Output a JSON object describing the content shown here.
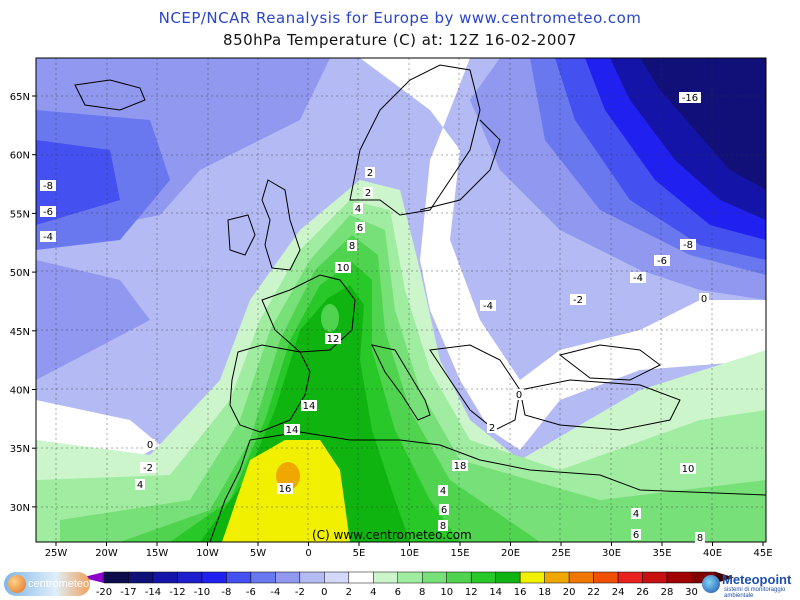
{
  "header": {
    "title": "NCEP/NCAR Reanalysis for Europe by www.centrometeo.com",
    "subtitle": "850hPa Temperature (C) at: 12Z 16-02-2007"
  },
  "watermark": "(C) www.centrometeo.com",
  "axes": {
    "x_ticks": [
      "25W",
      "20W",
      "15W",
      "10W",
      "5W",
      "0",
      "5E",
      "10E",
      "15E",
      "20E",
      "25E",
      "30E",
      "35E",
      "40E",
      "45E"
    ],
    "y_ticks": [
      "65N",
      "60N",
      "55N",
      "50N",
      "45N",
      "40N",
      "35N",
      "30N"
    ]
  },
  "contour_labels": [
    "-16",
    "-8",
    "-6",
    "-4",
    "-8",
    "-6",
    "-4",
    "-4",
    "-2",
    "0",
    "0",
    "-2",
    "4",
    "0",
    "2",
    "2",
    "2",
    "4",
    "6",
    "8",
    "10",
    "12",
    "14",
    "14",
    "16",
    "18",
    "4",
    "6",
    "8",
    "10",
    "4",
    "6",
    "8"
  ],
  "colorbar": {
    "labels": [
      "-20",
      "-17",
      "-14",
      "-12",
      "-10",
      "-8",
      "-6",
      "-4",
      "-2",
      "0",
      "2",
      "4",
      "6",
      "8",
      "10",
      "12",
      "14",
      "16",
      "18",
      "20",
      "22",
      "24",
      "26",
      "28",
      "30"
    ],
    "colors": [
      "#0c0c4c",
      "#101078",
      "#1414a8",
      "#1e1ecc",
      "#2020f0",
      "#4450f0",
      "#6a78f0",
      "#9098f0",
      "#b4baf4",
      "#d4d8fa",
      "#ffffff",
      "#ccf5cc",
      "#a0eca0",
      "#78e078",
      "#50d450",
      "#28c828",
      "#10b410",
      "#f0f000",
      "#f0a800",
      "#f07800",
      "#f05000",
      "#e82020",
      "#c81010",
      "#a00000",
      "#800000"
    ]
  },
  "logos": {
    "left": "centrometeo",
    "right_name": "Meteopoint",
    "right_sub": "sistemi di monitoraggio ambientale"
  },
  "colors": {
    "title_blue": "#2a45c8",
    "land_outline": "#000000"
  }
}
